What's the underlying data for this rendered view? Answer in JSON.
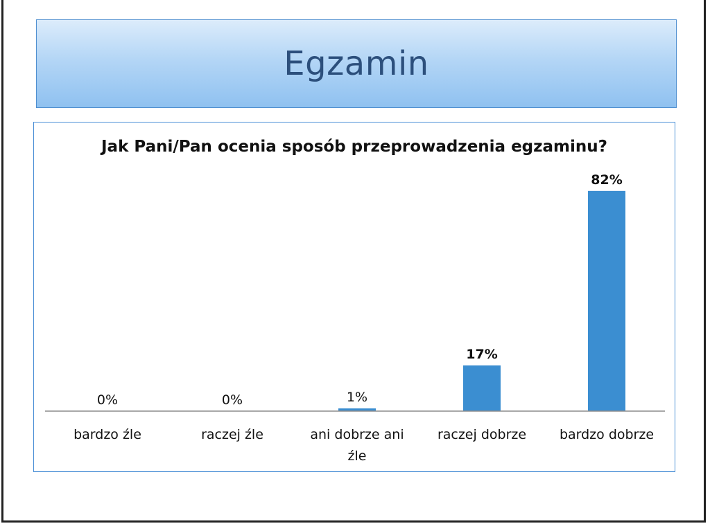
{
  "slide": {
    "title": "Egzamin"
  },
  "chart_data": {
    "type": "bar",
    "title": "Jak Pani/Pan ocenia sposób przeprowadzenia egzaminu?",
    "categories": [
      "bardzo źle",
      "raczej źle",
      "ani dobrze ani źle",
      "raczej dobrze",
      "bardzo dobrze"
    ],
    "category_lines": [
      [
        "bardzo źle"
      ],
      [
        "raczej źle"
      ],
      [
        "ani dobrze ani",
        "źle"
      ],
      [
        "raczej dobrze"
      ],
      [
        "bardzo dobrze"
      ]
    ],
    "values": [
      0,
      0,
      1,
      17,
      82
    ],
    "value_labels": [
      "0%",
      "0%",
      "1%",
      "17%",
      "82%"
    ],
    "label_bold": [
      false,
      false,
      false,
      true,
      true
    ],
    "unit": "%",
    "ylim": [
      0,
      100
    ],
    "xlabel": "",
    "ylabel": "",
    "grid": false,
    "legend": "none",
    "bar_color": "#3b8ed1"
  }
}
